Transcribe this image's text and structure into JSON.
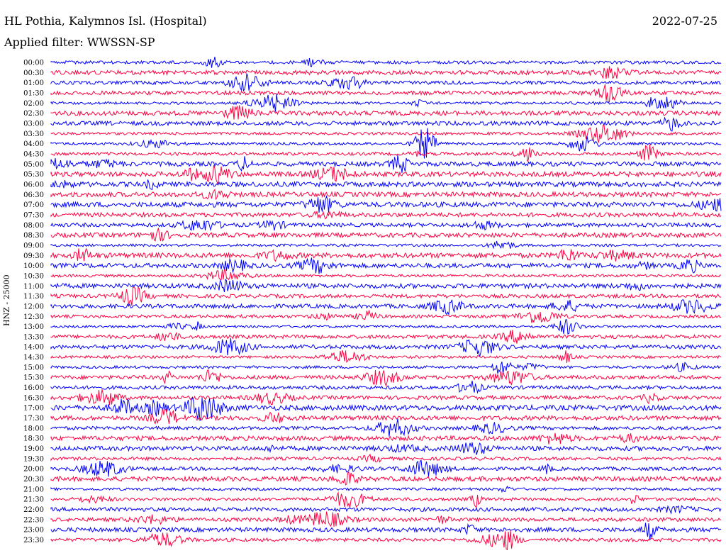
{
  "header": {
    "station": "HL Pothia, Kalymnos Isl. (Hospital)",
    "date": "2022-07-25",
    "filter": "Applied filter: WWSSN-SP"
  },
  "chart_data": {
    "type": "line",
    "chart_kind": "helicorder / seismogram drum plot",
    "ylabel": "HNZ - 25000",
    "row_labels": [
      "00:00",
      "00:30",
      "01:00",
      "01:30",
      "02:00",
      "02:30",
      "03:00",
      "03:30",
      "04:00",
      "04:30",
      "05:00",
      "05:30",
      "06:00",
      "06:30",
      "07:00",
      "07:30",
      "08:00",
      "08:30",
      "09:00",
      "09:30",
      "10:00",
      "10:30",
      "11:00",
      "11:30",
      "12:00",
      "12:30",
      "13:00",
      "13:30",
      "14:00",
      "14:30",
      "15:00",
      "15:30",
      "16:00",
      "16:30",
      "17:00",
      "17:30",
      "18:00",
      "18:30",
      "19:00",
      "19:30",
      "20:00",
      "20:30",
      "21:00",
      "21:30",
      "22:00",
      "22:30",
      "23:00",
      "23:30"
    ],
    "row_duration_minutes": 30,
    "colors": {
      "even_rows": "#0000ff",
      "odd_rows": "#ff0040"
    },
    "grid": false,
    "legend": "none"
  }
}
